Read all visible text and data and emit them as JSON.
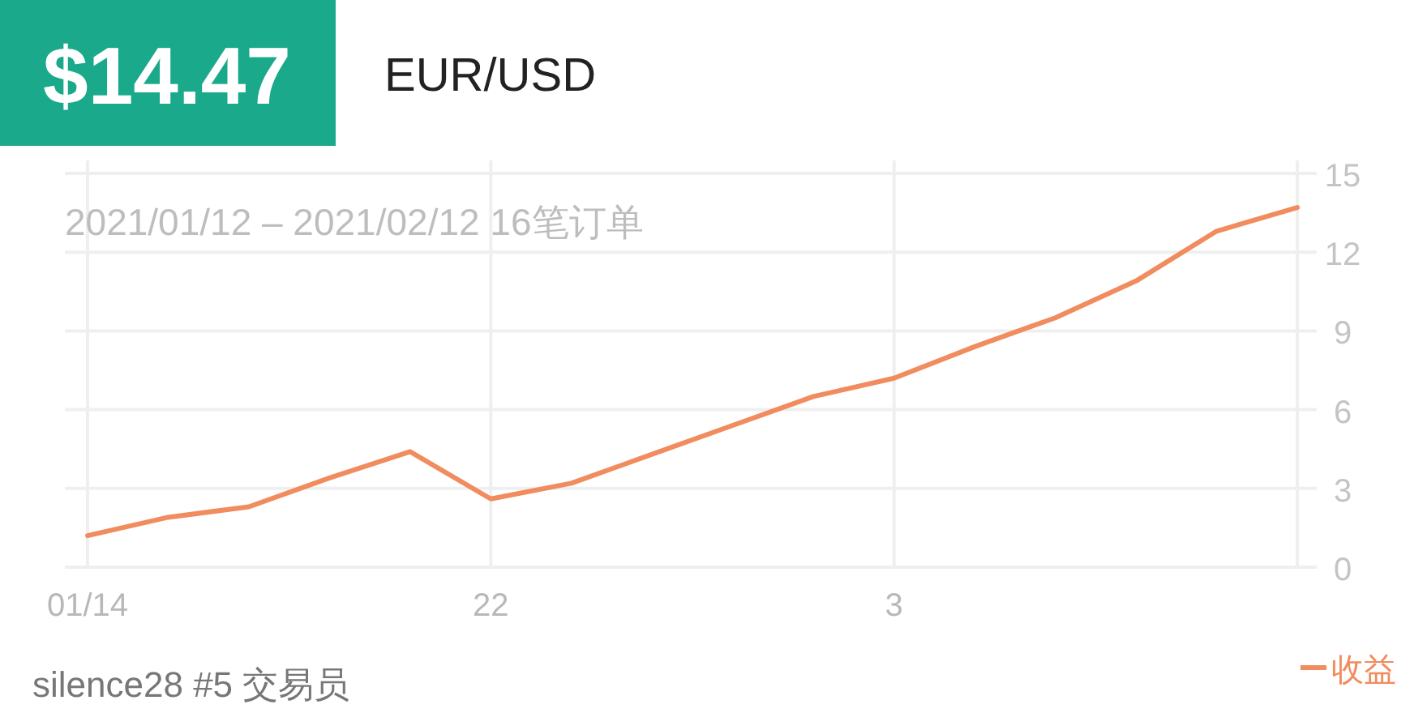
{
  "chart_data": {
    "type": "line",
    "title": "$14.47",
    "subtitle": "EUR/USD",
    "categories": [
      "01/14",
      null,
      null,
      null,
      null,
      "22",
      null,
      null,
      null,
      null,
      "3",
      null,
      null,
      null,
      null,
      null
    ],
    "series": [
      {
        "name": "收益",
        "color": "#f08c5e",
        "values": [
          1.2,
          1.9,
          2.3,
          3.4,
          4.4,
          2.6,
          3.2,
          4.3,
          5.4,
          6.5,
          7.2,
          8.4,
          9.5,
          10.9,
          12.8,
          13.7
        ]
      }
    ],
    "ylim": [
      0,
      15
    ],
    "yticks": [
      0,
      3,
      6,
      9,
      12,
      15
    ],
    "grid": true,
    "legend": "bottom right",
    "annotations": [
      "2021/01/12 – 2021/02/12 16笔订单",
      "silence28 #5 交易员"
    ]
  }
}
